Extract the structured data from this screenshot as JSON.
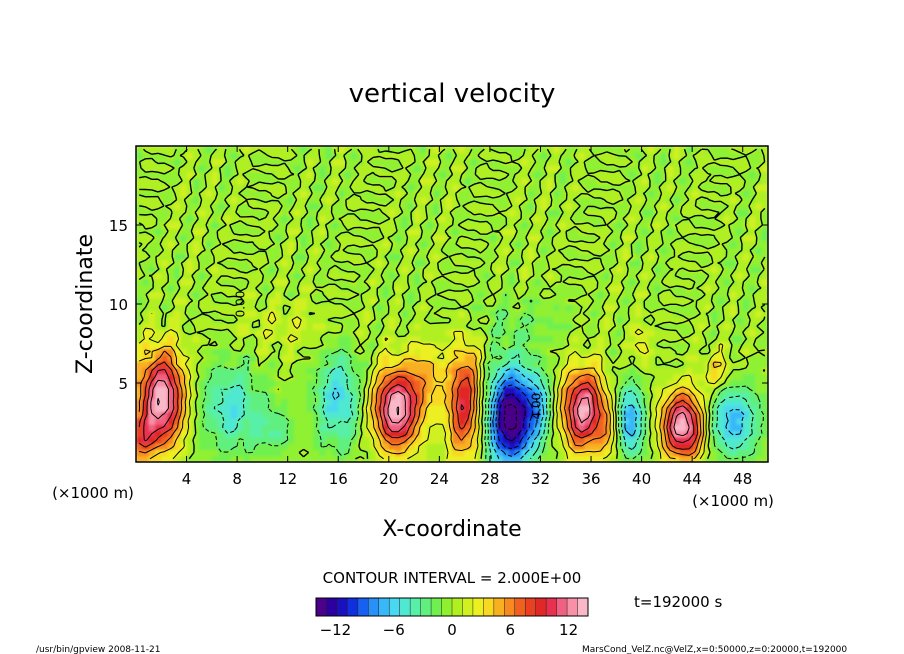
{
  "chart_data": {
    "type": "heatmap",
    "title": "vertical velocity",
    "xlabel": "X-coordinate",
    "ylabel": "Z-coordinate",
    "x_unit": "(×1000 m)",
    "y_unit": "(×1000 m)",
    "xlim": [
      0,
      50
    ],
    "ylim": [
      0,
      20
    ],
    "x_ticks": [
      4,
      8,
      12,
      16,
      20,
      24,
      28,
      32,
      36,
      40,
      44,
      48
    ],
    "y_ticks": [
      5,
      10,
      15
    ],
    "contour_interval_label": "CONTOUR INTERVAL = 2.000E+00",
    "contour_labels": [
      {
        "text": "0.00",
        "x": 8.6,
        "z": 10.0
      },
      {
        "text": "-4.00",
        "x": 32.0,
        "z": 3.4
      }
    ],
    "colorbar": {
      "min": -14,
      "max": 14,
      "ticks": [
        -12,
        -6,
        0,
        6,
        12
      ],
      "colors": [
        "#4a0088",
        "#2c00a0",
        "#1a10c0",
        "#1030e0",
        "#1860f0",
        "#2890f8",
        "#38b8f8",
        "#48d8f0",
        "#50e8d0",
        "#58f0a8",
        "#60f080",
        "#70f050",
        "#90f030",
        "#b0f020",
        "#d0f020",
        "#ecf020",
        "#f8d820",
        "#f8b020",
        "#f88820",
        "#f06020",
        "#e84020",
        "#e02828",
        "#e83050",
        "#f06080",
        "#f890a8",
        "#f8b8c8"
      ]
    },
    "time_label": "t=192000 s",
    "cells": [
      {
        "x": 2,
        "z": 4.0,
        "sx": 1.3,
        "sz": 2.1,
        "v": 14
      },
      {
        "x": 0.4,
        "z": 1.5,
        "sx": 0.8,
        "sz": 1.0,
        "v": 6
      },
      {
        "x": 7.5,
        "z": 3.5,
        "sx": 1.8,
        "sz": 2.0,
        "v": -5
      },
      {
        "x": 11,
        "z": 2.0,
        "sx": 1.0,
        "sz": 1.0,
        "v": -3
      },
      {
        "x": 16,
        "z": 4.0,
        "sx": 1.3,
        "sz": 2.2,
        "v": -6
      },
      {
        "x": 20.6,
        "z": 3.4,
        "sx": 1.3,
        "sz": 1.8,
        "v": 14
      },
      {
        "x": 23,
        "z": 5.5,
        "sx": 0.9,
        "sz": 1.5,
        "v": 4
      },
      {
        "x": 26.0,
        "z": 3.8,
        "sx": 1.0,
        "sz": 2.5,
        "v": 10
      },
      {
        "x": 29.6,
        "z": 2.8,
        "sx": 1.3,
        "sz": 2.2,
        "v": -15
      },
      {
        "x": 31.8,
        "z": 3.5,
        "sx": 0.8,
        "sz": 1.6,
        "v": -5
      },
      {
        "x": 35.4,
        "z": 3.3,
        "sx": 1.2,
        "sz": 1.8,
        "v": 13
      },
      {
        "x": 37.6,
        "z": 2.0,
        "sx": 0.7,
        "sz": 1.3,
        "v": 4
      },
      {
        "x": 39.0,
        "z": 2.6,
        "sx": 0.9,
        "sz": 1.6,
        "v": -8
      },
      {
        "x": 43.3,
        "z": 2.3,
        "sx": 1.2,
        "sz": 1.5,
        "v": 14
      },
      {
        "x": 47.2,
        "z": 2.6,
        "sx": 1.5,
        "sz": 1.6,
        "v": -7
      },
      {
        "x": 46,
        "z": 5.8,
        "sx": 0.8,
        "sz": 0.9,
        "v": 4
      },
      {
        "x": 12,
        "z": 8.5,
        "sx": 3.0,
        "sz": 1.2,
        "v": 1.5
      },
      {
        "x": 30,
        "z": 8.8,
        "sx": 3.0,
        "sz": 1.2,
        "v": -1.5
      },
      {
        "x": 40,
        "z": 7.5,
        "sx": 0.5,
        "sz": 1.0,
        "v": 3
      }
    ],
    "grid": false
  },
  "footer": {
    "left": "/usr/bin/gpview  2008-11-21",
    "right": "MarsCond_VelZ.nc@VelZ,x=0:50000,z=0:20000,t=192000"
  }
}
